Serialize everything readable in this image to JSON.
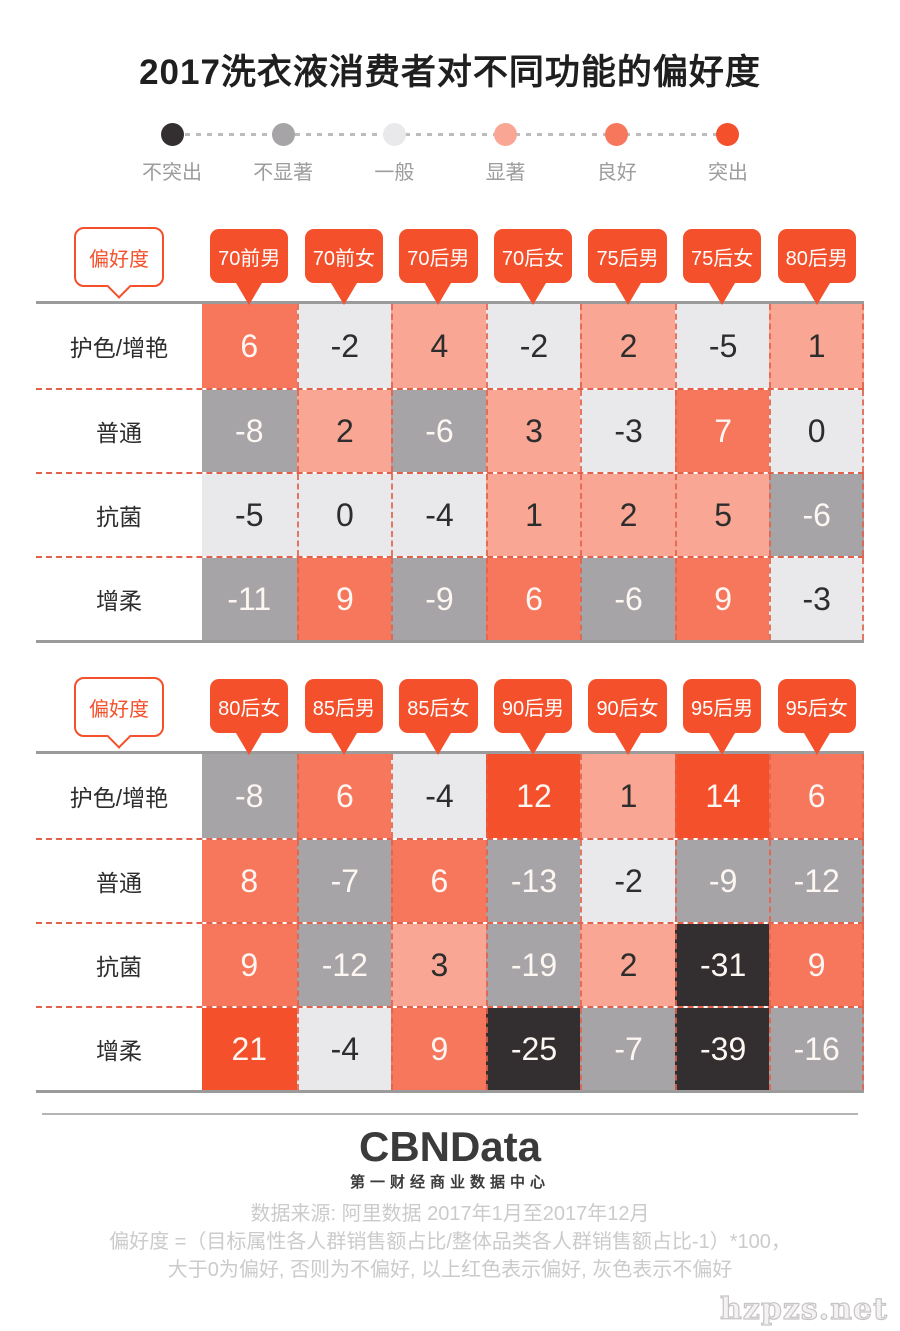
{
  "title": "2017洗衣液消费者对不同功能的偏好度",
  "colors": {
    "accent": "#f4502c",
    "grid_line": "#9b9b9b",
    "dashed_line": "#e2614a"
  },
  "legend": {
    "items": [
      {
        "label": "不突出",
        "color": "#332f30"
      },
      {
        "label": "不显著",
        "color": "#a6a4a6"
      },
      {
        "label": "一般",
        "color": "#e9e8ea"
      },
      {
        "label": "显著",
        "color": "#f9a794"
      },
      {
        "label": "良好",
        "color": "#f7775c"
      },
      {
        "label": "突出",
        "color": "#f4502c"
      }
    ]
  },
  "tables": [
    {
      "corner_label": "偏好度",
      "columns": [
        "70前男",
        "70前女",
        "70后男",
        "70后女",
        "75后男",
        "75后女",
        "80后男"
      ],
      "rows": [
        {
          "label": "护色/增艳",
          "values": [
            6,
            -2,
            4,
            -2,
            2,
            -5,
            1
          ]
        },
        {
          "label": "普通",
          "values": [
            -8,
            2,
            -6,
            3,
            -3,
            7,
            0
          ]
        },
        {
          "label": "抗菌",
          "values": [
            -5,
            0,
            -4,
            1,
            2,
            5,
            -6
          ]
        },
        {
          "label": "增柔",
          "values": [
            -11,
            9,
            -9,
            6,
            -6,
            9,
            -3
          ]
        }
      ]
    },
    {
      "corner_label": "偏好度",
      "columns": [
        "80后女",
        "85后男",
        "85后女",
        "90后男",
        "90后女",
        "95后男",
        "95后女"
      ],
      "rows": [
        {
          "label": "护色/增艳",
          "values": [
            -8,
            6,
            -4,
            12,
            1,
            14,
            6
          ]
        },
        {
          "label": "普通",
          "values": [
            8,
            -7,
            6,
            -13,
            -2,
            -9,
            -12
          ]
        },
        {
          "label": "抗菌",
          "values": [
            9,
            -12,
            3,
            -19,
            2,
            -31,
            9
          ]
        },
        {
          "label": "增柔",
          "values": [
            21,
            -4,
            9,
            -25,
            -7,
            -39,
            -16
          ]
        }
      ]
    }
  ],
  "footer": {
    "logo": "CBNData",
    "logo_subtitle": "第一财经商业数据中心",
    "source_line": "数据来源: 阿里数据  2017年1月至2017年12月",
    "formula_line": "偏好度 =（目标属性各人群销售额占比/整体品类各人群销售额占比-1）*100，",
    "note_line": "大于0为偏好, 否则为不偏好, 以上红色表示偏好, 灰色表示不偏好"
  },
  "watermark": "hzpzs.net",
  "chart_data": [
    {
      "type": "heatmap",
      "title": "2017洗衣液消费者对不同功能的偏好度",
      "x_labels": [
        "70前男",
        "70前女",
        "70后男",
        "70后女",
        "75后男",
        "75后女",
        "80后男"
      ],
      "y_labels": [
        "护色/增艳",
        "普通",
        "抗菌",
        "增柔"
      ],
      "values": [
        [
          6,
          -2,
          4,
          -2,
          2,
          -5,
          1
        ],
        [
          -8,
          2,
          -6,
          3,
          -3,
          7,
          0
        ],
        [
          -5,
          0,
          -4,
          1,
          2,
          5,
          -6
        ],
        [
          -11,
          9,
          -9,
          6,
          -6,
          9,
          -3
        ]
      ],
      "legend_labels": [
        "不突出",
        "不显著",
        "一般",
        "显著",
        "良好",
        "突出"
      ],
      "legend_position": "top"
    },
    {
      "type": "heatmap",
      "title": "2017洗衣液消费者对不同功能的偏好度",
      "x_labels": [
        "80后女",
        "85后男",
        "85后女",
        "90后男",
        "90后女",
        "95后男",
        "95后女"
      ],
      "y_labels": [
        "护色/增艳",
        "普通",
        "抗菌",
        "增柔"
      ],
      "values": [
        [
          -8,
          6,
          -4,
          12,
          1,
          14,
          6
        ],
        [
          8,
          -7,
          6,
          -13,
          -2,
          -9,
          -12
        ],
        [
          9,
          -12,
          3,
          -19,
          2,
          -31,
          9
        ],
        [
          21,
          -4,
          9,
          -25,
          -7,
          -39,
          -16
        ]
      ],
      "legend_labels": [
        "不突出",
        "不显著",
        "一般",
        "显著",
        "良好",
        "突出"
      ],
      "legend_position": "top"
    }
  ]
}
